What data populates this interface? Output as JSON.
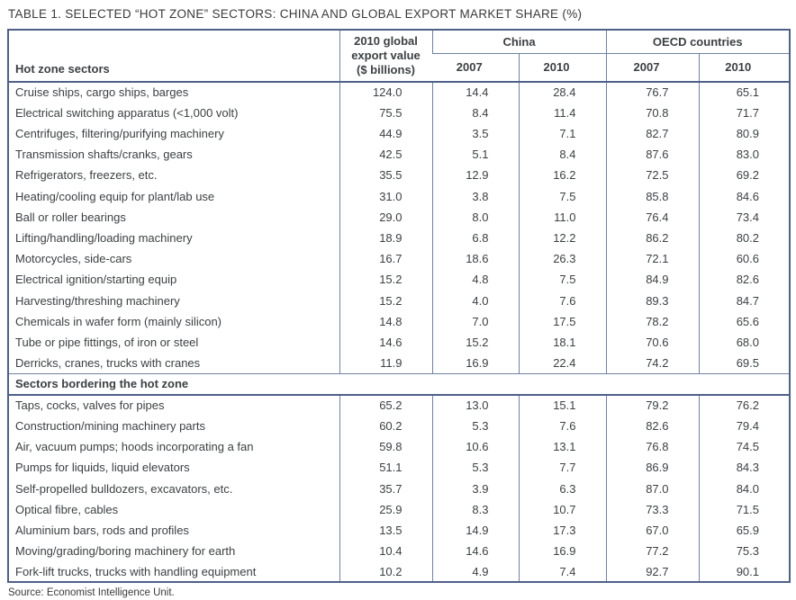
{
  "title": "TABLE 1. SELECTED “HOT ZONE” SECTORS: CHINA AND GLOBAL EXPORT MARKET SHARE (%)",
  "source": "Source: Economist Intelligence Unit.",
  "table": {
    "header": {
      "sectors": "Hot zone sectors",
      "export_value": "2010 global export value ($ billions)",
      "china": "China",
      "oecd": "OECD countries",
      "years": [
        "2007",
        "2010",
        "2007",
        "2010"
      ]
    },
    "sections": [
      {
        "label": "",
        "rows": [
          [
            "Cruise ships, cargo ships, barges",
            "124.0",
            "14.4",
            "28.4",
            "76.7",
            "65.1"
          ],
          [
            "Electrical switching apparatus (<1,000 volt)",
            "75.5",
            "8.4",
            "11.4",
            "70.8",
            "71.7"
          ],
          [
            "Centrifuges, filtering/purifying machinery",
            "44.9",
            "3.5",
            "7.1",
            "82.7",
            "80.9"
          ],
          [
            "Transmission shafts/cranks, gears",
            "42.5",
            "5.1",
            "8.4",
            "87.6",
            "83.0"
          ],
          [
            "Refrigerators, freezers, etc.",
            "35.5",
            "12.9",
            "16.2",
            "72.5",
            "69.2"
          ],
          [
            "Heating/cooling equip for plant/lab use",
            "31.0",
            "3.8",
            "7.5",
            "85.8",
            "84.6"
          ],
          [
            "Ball or roller bearings",
            "29.0",
            "8.0",
            "11.0",
            "76.4",
            "73.4"
          ],
          [
            "Lifting/handling/loading machinery",
            "18.9",
            "6.8",
            "12.2",
            "86.2",
            "80.2"
          ],
          [
            "Motorcycles, side-cars",
            "16.7",
            "18.6",
            "26.3",
            "72.1",
            "60.6"
          ],
          [
            "Electrical ignition/starting equip",
            "15.2",
            "4.8",
            "7.5",
            "84.9",
            "82.6"
          ],
          [
            "Harvesting/threshing machinery",
            "15.2",
            "4.0",
            "7.6",
            "89.3",
            "84.7"
          ],
          [
            "Chemicals in wafer form (mainly silicon)",
            "14.8",
            "7.0",
            "17.5",
            "78.2",
            "65.6"
          ],
          [
            "Tube or pipe fittings, of iron or steel",
            "14.6",
            "15.2",
            "18.1",
            "70.6",
            "68.0"
          ],
          [
            "Derricks, cranes, trucks with cranes",
            "11.9",
            "16.9",
            "22.4",
            "74.2",
            "69.5"
          ]
        ]
      },
      {
        "label": "Sectors bordering the hot zone",
        "rows": [
          [
            "Taps, cocks, valves for pipes",
            "65.2",
            "13.0",
            "15.1",
            "79.2",
            "76.2"
          ],
          [
            "Construction/mining machinery parts",
            "60.2",
            "5.3",
            "7.6",
            "82.6",
            "79.4"
          ],
          [
            "Air, vacuum pumps; hoods incorporating a fan",
            "59.8",
            "10.6",
            "13.1",
            "76.8",
            "74.5"
          ],
          [
            "Pumps for liquids, liquid elevators",
            "51.1",
            "5.3",
            "7.7",
            "86.9",
            "84.3"
          ],
          [
            "Self-propelled bulldozers, excavators, etc.",
            "35.7",
            "3.9",
            "6.3",
            "87.0",
            "84.0"
          ],
          [
            "Optical fibre, cables",
            "25.9",
            "8.3",
            "10.7",
            "73.3",
            "71.5"
          ],
          [
            "Aluminium bars, rods and profiles",
            "13.5",
            "14.9",
            "17.3",
            "67.0",
            "65.9"
          ],
          [
            "Moving/grading/boring machinery for earth",
            "10.4",
            "14.6",
            "16.9",
            "77.2",
            "75.3"
          ],
          [
            "Fork-lift trucks, trucks with handling equipment",
            "10.2",
            "4.9",
            "7.4",
            "92.7",
            "90.1"
          ]
        ]
      }
    ]
  }
}
